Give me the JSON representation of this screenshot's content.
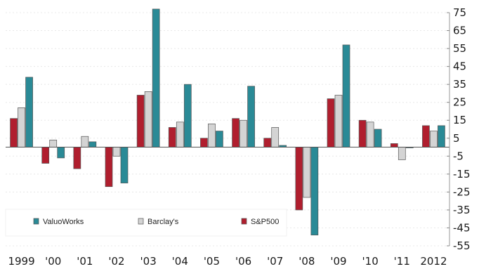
{
  "chart_data": {
    "type": "bar",
    "title": "",
    "xlabel": "",
    "ylabel": "",
    "ylim": [
      -55,
      75
    ],
    "yticks": [
      75,
      65,
      55,
      45,
      35,
      25,
      15,
      5,
      -5,
      -15,
      -25,
      -35,
      -45,
      -55
    ],
    "y_axis_side": "right",
    "grid": false,
    "legend_placement": "bottom-left",
    "categories": [
      "1999",
      "'00",
      "'01",
      "'02",
      "'03",
      "'04",
      "'05",
      "'06",
      "'07",
      "'08",
      "'09",
      "'10",
      "'11",
      "2012"
    ],
    "series": [
      {
        "name": "S&P500",
        "color": "#b01e2e",
        "values": [
          16,
          -9,
          -12,
          -22,
          29,
          11,
          5,
          16,
          5,
          -35,
          27,
          15,
          2,
          12
        ]
      },
      {
        "name": "Barclay's",
        "color": "#d4d4d4",
        "values": [
          22,
          4,
          6,
          -5,
          31,
          14,
          13,
          15,
          11,
          -28,
          29,
          14,
          -7,
          9
        ]
      },
      {
        "name": "ValuoWorks",
        "color": "#2a8a96",
        "values": [
          39,
          -6,
          3,
          -20,
          77,
          35,
          9,
          34,
          1,
          -49,
          57,
          10,
          0,
          12
        ]
      }
    ],
    "legend_order": [
      "ValuoWorks",
      "Barclay's",
      "S&P500"
    ]
  }
}
